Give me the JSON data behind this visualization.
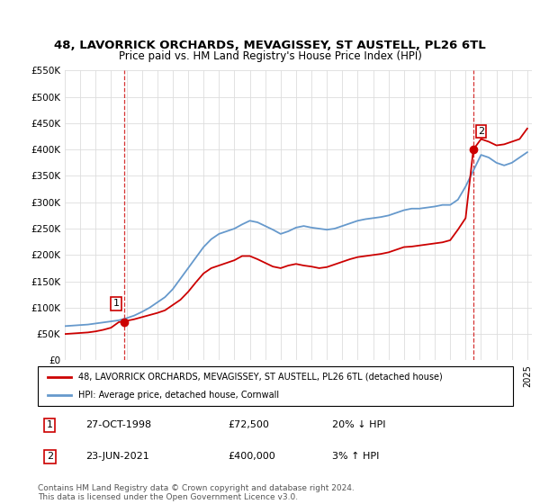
{
  "title": "48, LAVORRICK ORCHARDS, MEVAGISSEY, ST AUSTELL, PL26 6TL",
  "subtitle": "Price paid vs. HM Land Registry's House Price Index (HPI)",
  "sale1_price": 72500,
  "sale1_label": "1",
  "sale2_price": 400000,
  "sale2_label": "2",
  "legend_line1": "48, LAVORRICK ORCHARDS, MEVAGISSEY, ST AUSTELL, PL26 6TL (detached house)",
  "legend_line2": "HPI: Average price, detached house, Cornwall",
  "footer": "Contains HM Land Registry data © Crown copyright and database right 2024.\nThis data is licensed under the Open Government Licence v3.0.",
  "red_color": "#cc0000",
  "blue_color": "#6699cc",
  "ylim": [
    0,
    550000
  ],
  "yticks": [
    0,
    50000,
    100000,
    150000,
    200000,
    250000,
    300000,
    350000,
    400000,
    450000,
    500000,
    550000
  ],
  "hpi_years": [
    1995,
    1995.5,
    1996,
    1996.5,
    1997,
    1997.5,
    1998,
    1998.5,
    1999,
    1999.5,
    2000,
    2000.5,
    2001,
    2001.5,
    2002,
    2002.5,
    2003,
    2003.5,
    2004,
    2004.5,
    2005,
    2005.5,
    2006,
    2006.5,
    2007,
    2007.5,
    2008,
    2008.5,
    2009,
    2009.5,
    2010,
    2010.5,
    2011,
    2011.5,
    2012,
    2012.5,
    2013,
    2013.5,
    2014,
    2014.5,
    2015,
    2015.5,
    2016,
    2016.5,
    2017,
    2017.5,
    2018,
    2018.5,
    2019,
    2019.5,
    2020,
    2020.5,
    2021,
    2021.5,
    2022,
    2022.5,
    2023,
    2023.5,
    2024,
    2024.5,
    2025
  ],
  "hpi_values": [
    65000,
    66000,
    67000,
    68000,
    70000,
    72000,
    74000,
    76000,
    80000,
    85000,
    92000,
    100000,
    110000,
    120000,
    135000,
    155000,
    175000,
    195000,
    215000,
    230000,
    240000,
    245000,
    250000,
    258000,
    265000,
    262000,
    255000,
    248000,
    240000,
    245000,
    252000,
    255000,
    252000,
    250000,
    248000,
    250000,
    255000,
    260000,
    265000,
    268000,
    270000,
    272000,
    275000,
    280000,
    285000,
    288000,
    288000,
    290000,
    292000,
    295000,
    295000,
    305000,
    330000,
    360000,
    390000,
    385000,
    375000,
    370000,
    375000,
    385000,
    395000
  ],
  "red_years": [
    1995,
    1995.5,
    1996,
    1996.5,
    1997,
    1997.5,
    1998,
    1998.5,
    1999,
    1999.5,
    2000,
    2000.5,
    2001,
    2001.5,
    2002,
    2002.5,
    2003,
    2003.5,
    2004,
    2004.5,
    2005,
    2005.5,
    2006,
    2006.5,
    2007,
    2007.5,
    2008,
    2008.5,
    2009,
    2009.5,
    2010,
    2010.5,
    2011,
    2011.5,
    2012,
    2012.5,
    2013,
    2013.5,
    2014,
    2014.5,
    2015,
    2015.5,
    2016,
    2016.5,
    2017,
    2017.5,
    2018,
    2018.5,
    2019,
    2019.5,
    2020,
    2020.5,
    2021,
    2021.5,
    2022,
    2022.5,
    2023,
    2023.5,
    2024,
    2024.5,
    2025
  ],
  "red_values": [
    50000,
    51000,
    52000,
    53000,
    55000,
    58000,
    62000,
    72500,
    75000,
    78000,
    82000,
    86000,
    90000,
    95000,
    105000,
    115000,
    130000,
    148000,
    165000,
    175000,
    180000,
    185000,
    190000,
    198000,
    198000,
    192000,
    185000,
    178000,
    175000,
    180000,
    183000,
    180000,
    178000,
    175000,
    177000,
    182000,
    187000,
    192000,
    196000,
    198000,
    200000,
    202000,
    205000,
    210000,
    215000,
    216000,
    218000,
    220000,
    222000,
    224000,
    228000,
    248000,
    270000,
    400000,
    420000,
    415000,
    408000,
    410000,
    415000,
    420000,
    440000
  ]
}
